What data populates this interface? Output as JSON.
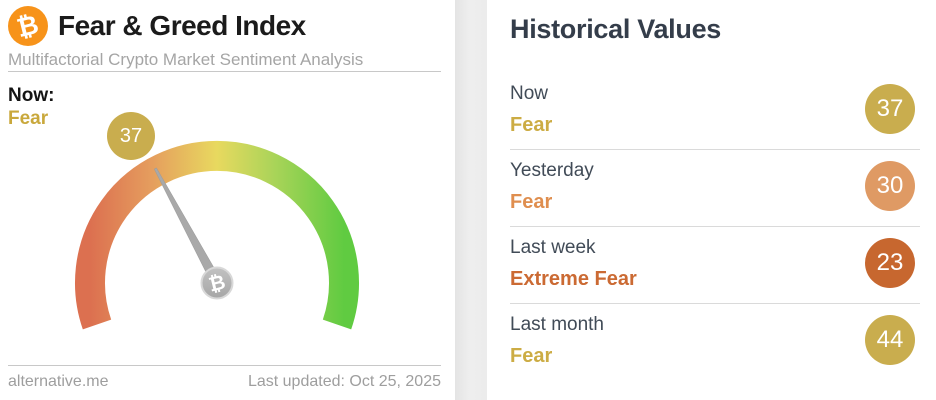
{
  "left_card": {
    "logo_glyph": "₿",
    "title": "Fear & Greed Index",
    "subtitle": "Multifactorial Crypto Market Sentiment Analysis",
    "now_label": "Now:",
    "now_status": "Fear",
    "now_status_color": "#c9a83c",
    "gauge": {
      "value": 37,
      "min": 0,
      "max": 100,
      "start_angle": 161,
      "sweep_angle": 218,
      "badge_color": "#c9ad4e",
      "arc_colors": [
        "#dc7050",
        "#e59d5e",
        "#e8d95f",
        "#abd459",
        "#60cb41"
      ],
      "needle_color": "#a9a9a9",
      "pivot_color": "#b3b3b3",
      "pivot_glyph": "₿"
    },
    "footer": {
      "source": "alternative.me",
      "last_updated": "Last updated: Oct 25, 2025"
    }
  },
  "right_card": {
    "title": "Historical Values",
    "rows": [
      {
        "label": "Now",
        "status": "Fear",
        "value": "37",
        "status_color": "#ccac44",
        "badge_color": "#c9ad4e"
      },
      {
        "label": "Yesterday",
        "status": "Fear",
        "value": "30",
        "status_color": "#df8e4f",
        "badge_color": "#df9a64"
      },
      {
        "label": "Last week",
        "status": "Extreme Fear",
        "value": "23",
        "status_color": "#cb6a33",
        "badge_color": "#c7672f"
      },
      {
        "label": "Last month",
        "status": "Fear",
        "value": "44",
        "status_color": "#ccac44",
        "badge_color": "#c9ad4e"
      }
    ]
  },
  "chart_data": {
    "type": "gauge",
    "title": "Fear & Greed Index",
    "value": 37,
    "min": 0,
    "max": 100,
    "classification": "Fear",
    "scale": "red (0, Extreme Fear) to green (100, Extreme Greed)",
    "history": [
      {
        "period": "Now",
        "value": 37,
        "classification": "Fear"
      },
      {
        "period": "Yesterday",
        "value": 30,
        "classification": "Fear"
      },
      {
        "period": "Last week",
        "value": 23,
        "classification": "Extreme Fear"
      },
      {
        "period": "Last month",
        "value": 44,
        "classification": "Fear"
      }
    ]
  },
  "colors": {
    "bitcoin_orange": "#f7931a",
    "gold": "#c9ad4e",
    "light_orange": "#df9a64",
    "dark_orange": "#c7672f",
    "divider": "#c8c8c8",
    "muted_text": "#9e9e9e"
  }
}
